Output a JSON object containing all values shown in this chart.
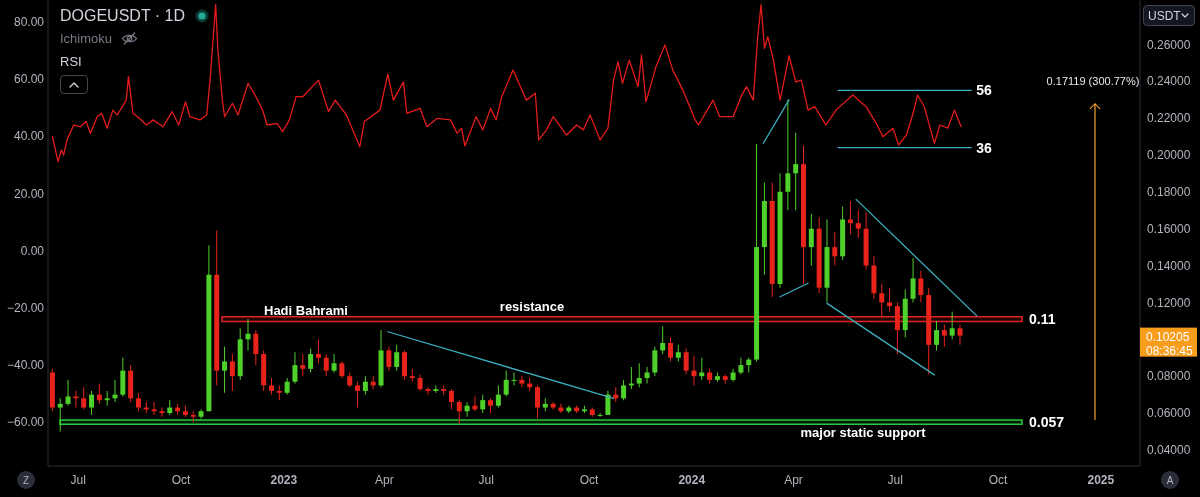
{
  "chart_data": {
    "type": "candlestick",
    "title": "DOGEUSDT · 1D",
    "ylabel": "USDT",
    "x": [
      "2022-06-08",
      "2022-06-15",
      "2022-06-22",
      "2022-06-29",
      "2022-07-06",
      "2022-07-13",
      "2022-07-20",
      "2022-07-27",
      "2022-08-03",
      "2022-08-10",
      "2022-08-17",
      "2022-08-24",
      "2022-08-31",
      "2022-09-07",
      "2022-09-14",
      "2022-09-21",
      "2022-09-28",
      "2022-10-05",
      "2022-10-12",
      "2022-10-19",
      "2022-10-26",
      "2022-11-02",
      "2022-11-09",
      "2022-11-16",
      "2022-11-23",
      "2022-11-30",
      "2022-12-07",
      "2022-12-14",
      "2022-12-21",
      "2022-12-28",
      "2023-01-04",
      "2023-01-11",
      "2023-01-18",
      "2023-01-25",
      "2023-02-01",
      "2023-02-08",
      "2023-02-15",
      "2023-02-22",
      "2023-03-01",
      "2023-03-08",
      "2023-03-15",
      "2023-03-22",
      "2023-03-29",
      "2023-04-05",
      "2023-04-12",
      "2023-04-19",
      "2023-04-26",
      "2023-05-03",
      "2023-05-10",
      "2023-05-17",
      "2023-05-24",
      "2023-05-31",
      "2023-06-07",
      "2023-06-14",
      "2023-06-21",
      "2023-06-28",
      "2023-07-05",
      "2023-07-12",
      "2023-07-19",
      "2023-07-26",
      "2023-08-02",
      "2023-08-09",
      "2023-08-16",
      "2023-08-23",
      "2023-08-30",
      "2023-09-06",
      "2023-09-13",
      "2023-09-20",
      "2023-09-27",
      "2023-10-04",
      "2023-10-11",
      "2023-10-18",
      "2023-10-25",
      "2023-11-01",
      "2023-11-08",
      "2023-11-15",
      "2023-11-22",
      "2023-11-29",
      "2023-12-06",
      "2023-12-13",
      "2023-12-20",
      "2023-12-27",
      "2024-01-03",
      "2024-01-10",
      "2024-01-17",
      "2024-01-24",
      "2024-01-31",
      "2024-02-07",
      "2024-02-14",
      "2024-02-21",
      "2024-02-28",
      "2024-03-06",
      "2024-03-13",
      "2024-03-20",
      "2024-03-27",
      "2024-04-03",
      "2024-04-10",
      "2024-04-17",
      "2024-04-24",
      "2024-05-01",
      "2024-05-08",
      "2024-05-15",
      "2024-05-22",
      "2024-05-29",
      "2024-06-05",
      "2024-06-12",
      "2024-06-19",
      "2024-06-26",
      "2024-07-03",
      "2024-07-10",
      "2024-07-17",
      "2024-07-24",
      "2024-07-31",
      "2024-08-07",
      "2024-08-14",
      "2024-08-21",
      "2024-08-28"
    ],
    "ohlc": [
      [
        0.082,
        0.084,
        0.061,
        0.063
      ],
      [
        0.063,
        0.068,
        0.05,
        0.065
      ],
      [
        0.065,
        0.078,
        0.064,
        0.069
      ],
      [
        0.069,
        0.072,
        0.063,
        0.068
      ],
      [
        0.068,
        0.074,
        0.062,
        0.063
      ],
      [
        0.063,
        0.072,
        0.059,
        0.07
      ],
      [
        0.07,
        0.076,
        0.065,
        0.067
      ],
      [
        0.067,
        0.072,
        0.064,
        0.068
      ],
      [
        0.068,
        0.078,
        0.066,
        0.07
      ],
      [
        0.07,
        0.09,
        0.069,
        0.083
      ],
      [
        0.083,
        0.086,
        0.066,
        0.068
      ],
      [
        0.068,
        0.071,
        0.061,
        0.063
      ],
      [
        0.063,
        0.066,
        0.06,
        0.062
      ],
      [
        0.062,
        0.066,
        0.059,
        0.061
      ],
      [
        0.061,
        0.063,
        0.058,
        0.06
      ],
      [
        0.06,
        0.067,
        0.059,
        0.063
      ],
      [
        0.063,
        0.065,
        0.059,
        0.061
      ],
      [
        0.061,
        0.064,
        0.058,
        0.059
      ],
      [
        0.059,
        0.061,
        0.055,
        0.058
      ],
      [
        0.058,
        0.062,
        0.057,
        0.061
      ],
      [
        0.061,
        0.151,
        0.061,
        0.135
      ],
      [
        0.135,
        0.159,
        0.075,
        0.083
      ],
      [
        0.083,
        0.096,
        0.071,
        0.088
      ],
      [
        0.088,
        0.092,
        0.072,
        0.08
      ],
      [
        0.08,
        0.106,
        0.078,
        0.1
      ],
      [
        0.1,
        0.111,
        0.094,
        0.103
      ],
      [
        0.103,
        0.105,
        0.086,
        0.092
      ],
      [
        0.092,
        0.094,
        0.072,
        0.075
      ],
      [
        0.075,
        0.079,
        0.07,
        0.072
      ],
      [
        0.072,
        0.075,
        0.067,
        0.071
      ],
      [
        0.071,
        0.079,
        0.07,
        0.077
      ],
      [
        0.077,
        0.093,
        0.076,
        0.086
      ],
      [
        0.086,
        0.092,
        0.08,
        0.084
      ],
      [
        0.084,
        0.095,
        0.082,
        0.092
      ],
      [
        0.092,
        0.1,
        0.087,
        0.09
      ],
      [
        0.09,
        0.092,
        0.08,
        0.083
      ],
      [
        0.083,
        0.092,
        0.082,
        0.087
      ],
      [
        0.087,
        0.088,
        0.079,
        0.08
      ],
      [
        0.08,
        0.082,
        0.074,
        0.075
      ],
      [
        0.075,
        0.077,
        0.063,
        0.072
      ],
      [
        0.072,
        0.08,
        0.07,
        0.077
      ],
      [
        0.077,
        0.08,
        0.073,
        0.075
      ],
      [
        0.075,
        0.105,
        0.074,
        0.094
      ],
      [
        0.094,
        0.096,
        0.083,
        0.085
      ],
      [
        0.085,
        0.097,
        0.083,
        0.093
      ],
      [
        0.093,
        0.094,
        0.078,
        0.08
      ],
      [
        0.08,
        0.084,
        0.077,
        0.079
      ],
      [
        0.079,
        0.081,
        0.072,
        0.073
      ],
      [
        0.073,
        0.074,
        0.07,
        0.072
      ],
      [
        0.072,
        0.075,
        0.071,
        0.073
      ],
      [
        0.073,
        0.075,
        0.07,
        0.072
      ],
      [
        0.072,
        0.073,
        0.062,
        0.066
      ],
      [
        0.066,
        0.067,
        0.054,
        0.061
      ],
      [
        0.061,
        0.066,
        0.058,
        0.064
      ],
      [
        0.064,
        0.069,
        0.061,
        0.062
      ],
      [
        0.062,
        0.07,
        0.06,
        0.067
      ],
      [
        0.067,
        0.068,
        0.06,
        0.064
      ],
      [
        0.064,
        0.075,
        0.063,
        0.07
      ],
      [
        0.07,
        0.083,
        0.069,
        0.078
      ],
      [
        0.078,
        0.082,
        0.075,
        0.078
      ],
      [
        0.078,
        0.08,
        0.074,
        0.076
      ],
      [
        0.076,
        0.079,
        0.072,
        0.074
      ],
      [
        0.074,
        0.075,
        0.057,
        0.063
      ],
      [
        0.063,
        0.068,
        0.061,
        0.065
      ],
      [
        0.065,
        0.066,
        0.062,
        0.063
      ],
      [
        0.063,
        0.065,
        0.06,
        0.061
      ],
      [
        0.061,
        0.064,
        0.06,
        0.063
      ],
      [
        0.063,
        0.064,
        0.06,
        0.061
      ],
      [
        0.061,
        0.064,
        0.06,
        0.062
      ],
      [
        0.062,
        0.063,
        0.058,
        0.059
      ],
      [
        0.059,
        0.06,
        0.058,
        0.059
      ],
      [
        0.059,
        0.072,
        0.059,
        0.07
      ],
      [
        0.07,
        0.074,
        0.066,
        0.068
      ],
      [
        0.068,
        0.078,
        0.067,
        0.075
      ],
      [
        0.075,
        0.085,
        0.073,
        0.076
      ],
      [
        0.076,
        0.087,
        0.074,
        0.079
      ],
      [
        0.079,
        0.085,
        0.076,
        0.082
      ],
      [
        0.082,
        0.096,
        0.08,
        0.094
      ],
      [
        0.094,
        0.107,
        0.092,
        0.098
      ],
      [
        0.098,
        0.101,
        0.088,
        0.09
      ],
      [
        0.09,
        0.097,
        0.088,
        0.093
      ],
      [
        0.093,
        0.095,
        0.081,
        0.083
      ],
      [
        0.083,
        0.091,
        0.075,
        0.08
      ],
      [
        0.08,
        0.09,
        0.078,
        0.082
      ],
      [
        0.082,
        0.084,
        0.076,
        0.078
      ],
      [
        0.078,
        0.082,
        0.077,
        0.08
      ],
      [
        0.08,
        0.081,
        0.076,
        0.078
      ],
      [
        0.078,
        0.084,
        0.077,
        0.082
      ],
      [
        0.082,
        0.09,
        0.081,
        0.086
      ],
      [
        0.086,
        0.09,
        0.082,
        0.089
      ],
      [
        0.089,
        0.206,
        0.088,
        0.15
      ],
      [
        0.15,
        0.185,
        0.135,
        0.175
      ],
      [
        0.175,
        0.185,
        0.123,
        0.13
      ],
      [
        0.13,
        0.19,
        0.128,
        0.18
      ],
      [
        0.18,
        0.23,
        0.17,
        0.19
      ],
      [
        0.19,
        0.212,
        0.17,
        0.195
      ],
      [
        0.195,
        0.205,
        0.13,
        0.15
      ],
      [
        0.15,
        0.168,
        0.14,
        0.16
      ],
      [
        0.16,
        0.166,
        0.125,
        0.128
      ],
      [
        0.128,
        0.165,
        0.12,
        0.15
      ],
      [
        0.15,
        0.158,
        0.14,
        0.145
      ],
      [
        0.145,
        0.172,
        0.143,
        0.165
      ],
      [
        0.165,
        0.175,
        0.157,
        0.163
      ],
      [
        0.163,
        0.17,
        0.155,
        0.16
      ],
      [
        0.16,
        0.169,
        0.138,
        0.14
      ],
      [
        0.14,
        0.145,
        0.122,
        0.125
      ],
      [
        0.125,
        0.13,
        0.112,
        0.12
      ],
      [
        0.12,
        0.128,
        0.115,
        0.118
      ],
      [
        0.118,
        0.12,
        0.092,
        0.105
      ],
      [
        0.105,
        0.127,
        0.101,
        0.122
      ],
      [
        0.122,
        0.144,
        0.12,
        0.133
      ],
      [
        0.133,
        0.137,
        0.12,
        0.124
      ],
      [
        0.124,
        0.128,
        0.081,
        0.097
      ],
      [
        0.097,
        0.11,
        0.094,
        0.105
      ],
      [
        0.105,
        0.108,
        0.096,
        0.102
      ],
      [
        0.102,
        0.115,
        0.1,
        0.106
      ],
      [
        0.106,
        0.108,
        0.097,
        0.102
      ]
    ],
    "colors": [
      "#e8231b",
      "#4fd12c",
      "#4fd12c",
      "#e8231b",
      "#e8231b",
      "#4fd12c",
      "#e8231b",
      "#4fd12c",
      "#4fd12c",
      "#4fd12c",
      "#e8231b",
      "#e8231b",
      "#e8231b",
      "#e8231b",
      "#e8231b",
      "#4fd12c",
      "#e8231b",
      "#e8231b",
      "#e8231b",
      "#4fd12c",
      "#4fd12c",
      "#e8231b",
      "#4fd12c",
      "#e8231b",
      "#4fd12c",
      "#4fd12c",
      "#e8231b",
      "#e8231b",
      "#e8231b",
      "#e8231b",
      "#4fd12c",
      "#4fd12c",
      "#e8231b",
      "#4fd12c",
      "#e8231b",
      "#e8231b",
      "#4fd12c",
      "#e8231b",
      "#e8231b",
      "#e8231b",
      "#4fd12c",
      "#e8231b",
      "#4fd12c",
      "#e8231b",
      "#4fd12c",
      "#e8231b",
      "#e8231b",
      "#e8231b",
      "#e8231b",
      "#4fd12c",
      "#e8231b",
      "#e8231b",
      "#e8231b",
      "#4fd12c",
      "#e8231b",
      "#4fd12c",
      "#e8231b",
      "#4fd12c",
      "#4fd12c",
      "#4fd12c",
      "#e8231b",
      "#e8231b",
      "#e8231b",
      "#4fd12c",
      "#e8231b",
      "#e8231b",
      "#4fd12c",
      "#e8231b",
      "#4fd12c",
      "#e8231b",
      "#4fd12c",
      "#4fd12c",
      "#e8231b",
      "#4fd12c",
      "#4fd12c",
      "#4fd12c",
      "#4fd12c",
      "#4fd12c",
      "#4fd12c",
      "#e8231b",
      "#4fd12c",
      "#e8231b",
      "#e8231b",
      "#4fd12c",
      "#e8231b",
      "#4fd12c",
      "#e8231b",
      "#4fd12c",
      "#4fd12c",
      "#4fd12c",
      "#4fd12c",
      "#4fd12c",
      "#e8231b",
      "#4fd12c",
      "#4fd12c",
      "#4fd12c",
      "#e8231b",
      "#4fd12c",
      "#e8231b",
      "#4fd12c",
      "#e8231b",
      "#4fd12c",
      "#e8231b",
      "#e8231b",
      "#e8231b",
      "#e8231b",
      "#e8231b",
      "#e8231b",
      "#e8231b",
      "#4fd12c",
      "#4fd12c",
      "#e8231b",
      "#e8231b",
      "#4fd12c",
      "#e8231b",
      "#4fd12c",
      "#e8231b"
    ],
    "series": [
      {
        "type": "line",
        "axis": "y2",
        "color": "#e31b1b",
        "x": [
          "2022-06-08",
          "2022-06-13",
          "2022-06-16",
          "2022-06-18",
          "2022-06-21",
          "2022-06-27",
          "2022-07-03",
          "2022-07-08",
          "2022-07-12",
          "2022-07-18",
          "2022-07-22",
          "2022-07-27",
          "2022-08-01",
          "2022-08-05",
          "2022-08-13",
          "2022-08-15",
          "2022-08-19",
          "2022-08-25",
          "2022-08-31",
          "2022-09-06",
          "2022-09-15",
          "2022-09-23",
          "2022-09-29",
          "2022-10-05",
          "2022-10-09",
          "2022-10-18",
          "2022-10-24",
          "2022-10-27",
          "2022-11-01",
          "2022-11-03",
          "2022-11-07",
          "2022-11-09",
          "2022-11-16",
          "2022-11-21",
          "2022-11-30",
          "2022-12-07",
          "2022-12-13",
          "2022-12-17",
          "2022-12-26",
          "2022-12-31",
          "2023-01-06",
          "2023-01-12",
          "2023-01-18",
          "2023-02-01",
          "2023-02-10",
          "2023-02-16",
          "2023-02-26",
          "2023-03-10",
          "2023-03-14",
          "2023-03-28",
          "2023-04-04",
          "2023-04-09",
          "2023-04-18",
          "2023-04-21",
          "2023-05-03",
          "2023-05-09",
          "2023-05-18",
          "2023-05-30",
          "2023-06-05",
          "2023-06-09",
          "2023-06-12",
          "2023-06-22",
          "2023-06-28",
          "2023-07-05",
          "2023-07-10",
          "2023-07-15",
          "2023-07-25",
          "2023-07-31",
          "2023-08-06",
          "2023-08-14",
          "2023-08-17",
          "2023-08-24",
          "2023-08-30",
          "2023-09-11",
          "2023-09-20",
          "2023-09-26",
          "2023-10-02",
          "2023-10-11",
          "2023-10-18",
          "2023-10-23",
          "2023-10-27",
          "2023-10-31",
          "2023-11-06",
          "2023-11-14",
          "2023-11-17",
          "2023-11-21",
          "2023-11-30",
          "2023-12-08",
          "2023-12-15",
          "2023-12-24",
          "2024-01-04",
          "2024-01-07",
          "2024-01-20",
          "2024-01-26",
          "2024-02-07",
          "2024-02-14",
          "2024-02-19",
          "2024-02-25",
          "2024-02-29",
          "2024-03-03",
          "2024-03-06",
          "2024-03-09",
          "2024-03-14",
          "2024-03-20",
          "2024-03-28",
          "2024-04-03",
          "2024-04-08",
          "2024-04-14",
          "2024-04-20",
          "2024-04-30",
          "2024-05-09",
          "2024-05-24",
          "2024-06-05",
          "2024-06-14",
          "2024-06-20",
          "2024-06-29",
          "2024-07-04",
          "2024-07-11",
          "2024-07-17",
          "2024-07-21",
          "2024-07-27",
          "2024-08-05",
          "2024-08-10",
          "2024-08-17",
          "2024-08-23",
          "2024-08-29"
        ],
        "values": [
          39.8,
          31.1,
          35.2,
          33.4,
          38.7,
          43.9,
          43.3,
          45.1,
          41.0,
          46.8,
          48.0,
          42.8,
          49.1,
          47.4,
          52.6,
          60.8,
          48.0,
          46.2,
          43.9,
          45.7,
          43.3,
          48.6,
          43.9,
          52.0,
          46.8,
          45.7,
          47.4,
          59.6,
          86,
          70.1,
          52.6,
          46.8,
          51.5,
          47.4,
          58.5,
          53.8,
          49.1,
          43.9,
          44.5,
          41.6,
          45.7,
          53.8,
          53.8,
          59.6,
          48.6,
          52.6,
          47.4,
          36.3,
          45.1,
          49.1,
          61.7,
          52.6,
          59.0,
          48.0,
          49.7,
          43.3,
          46.2,
          45.7,
          41.0,
          42.8,
          36.6,
          46.8,
          42.2,
          49.7,
          45.7,
          53.8,
          63.1,
          57.9,
          52.6,
          55.0,
          38.7,
          42.2,
          46.8,
          40.4,
          43.9,
          42.2,
          47.4,
          38.7,
          42.8,
          59.6,
          66.0,
          58.5,
          66.6,
          57.3,
          68.4,
          52.0,
          64.3,
          71.9,
          63.1,
          56.1,
          45.7,
          43.9,
          52.6,
          46.8,
          46.8,
          53.8,
          57.3,
          52.6,
          74.8,
          86,
          70.7,
          74.8,
          66.6,
          52.6,
          68.1,
          59,
          59.6,
          49.1,
          50.3,
          43.9,
          49.1,
          54.4,
          50.3,
          44.5,
          39.8,
          42.8,
          36.9,
          40.4,
          48.0,
          54.4,
          50.3,
          37.5,
          43.9,
          42.8,
          49.1,
          43.3
        ]
      },
      {
        "type": "line",
        "color": "#3aaec0",
        "x": [
          "2023-04-04",
          "2023-10-23"
        ],
        "values": [
          0.1041,
          0.068
        ]
      },
      {
        "type": "line",
        "color": "#3aaec0",
        "x": [
          "2024-03-05",
          "2024-03-28"
        ],
        "values": [
          0.2063,
          0.2298
        ]
      },
      {
        "type": "line",
        "color": "#3aaec0",
        "x": [
          "2024-03-20",
          "2024-04-14"
        ],
        "values": [
          0.1231,
          0.1304
        ]
      },
      {
        "type": "line",
        "color": "#3aaec0",
        "x": [
          "2024-05-27",
          "2024-09-12"
        ],
        "values": [
          0.1759,
          0.1127
        ]
      },
      {
        "type": "line",
        "color": "#3aaec0",
        "x": [
          "2024-05-01",
          "2024-08-05"
        ],
        "values": [
          0.1195,
          0.0807
        ]
      },
      {
        "type": "line",
        "axis": "y2",
        "name": "56",
        "color": "#3aaec0",
        "x": [
          "2024-05-11",
          "2024-09-07"
        ],
        "values": [
          56,
          56
        ]
      },
      {
        "type": "line",
        "axis": "y2",
        "name": "36",
        "color": "#3aaec0",
        "x": [
          "2024-05-11",
          "2024-09-07"
        ],
        "values": [
          36,
          36
        ]
      }
    ],
    "xlim": [
      "2022-06-04",
      "2025-02-05"
    ],
    "xticks": [
      {
        "value": "2022-07-01",
        "label": "Jul"
      },
      {
        "value": "2022-10-01",
        "label": "Oct"
      },
      {
        "value": "2023-01-01",
        "label": "2023"
      },
      {
        "value": "2023-04-01",
        "label": "Apr"
      },
      {
        "value": "2023-07-01",
        "label": "Jul"
      },
      {
        "value": "2023-10-01",
        "label": "Oct"
      },
      {
        "value": "2024-01-01",
        "label": "2024"
      },
      {
        "value": "2024-04-01",
        "label": "Apr"
      },
      {
        "value": "2024-07-01",
        "label": "Jul"
      },
      {
        "value": "2024-10-01",
        "label": "Oct"
      },
      {
        "value": "2025-01-01",
        "label": "2025"
      }
    ],
    "ylim": [
      0.0313,
      0.284
    ],
    "yticks": [
      {
        "value": 0.04,
        "label": "0.04000"
      },
      {
        "value": 0.06,
        "label": "0.06000"
      },
      {
        "value": 0.08,
        "label": "0.08000"
      },
      {
        "value": 0.12,
        "label": "0.12000"
      },
      {
        "value": 0.14,
        "label": "0.14000"
      },
      {
        "value": 0.16,
        "label": "0.16000"
      },
      {
        "value": 0.18,
        "label": "0.18000"
      },
      {
        "value": 0.2,
        "label": "0.20000"
      },
      {
        "value": 0.22,
        "label": "0.22000"
      },
      {
        "value": 0.24,
        "label": "0.24000"
      },
      {
        "value": 0.26,
        "label": "0.26000"
      }
    ],
    "y2lim": [
      -75.3,
      87.6
    ],
    "y2ticks": [
      {
        "value": -60,
        "label": "−60.00"
      },
      {
        "value": -40,
        "label": "−40.00"
      },
      {
        "value": -20,
        "label": "−20.00"
      },
      {
        "value": 0,
        "label": "0.00"
      },
      {
        "value": 20,
        "label": "20.00"
      },
      {
        "value": 40,
        "label": "40.00"
      },
      {
        "value": 60,
        "label": "60.00"
      },
      {
        "value": 80,
        "label": "80.00"
      }
    ],
    "bands": [
      {
        "axis": "y",
        "from": 0.1096,
        "to": 0.1123,
        "label": "resistance",
        "color": "#e02424"
      },
      {
        "axis": "y",
        "from": 0.054,
        "to": 0.0563,
        "label": "major static support",
        "color": "#27c93f"
      }
    ],
    "annotations": [
      "Ichimoku",
      "RSI",
      "Hadi Bahrami",
      "0.11",
      "0.057",
      "0.17119 (300.77%)",
      "0.10205",
      "08:36:45",
      "Z",
      "A"
    ]
  }
}
